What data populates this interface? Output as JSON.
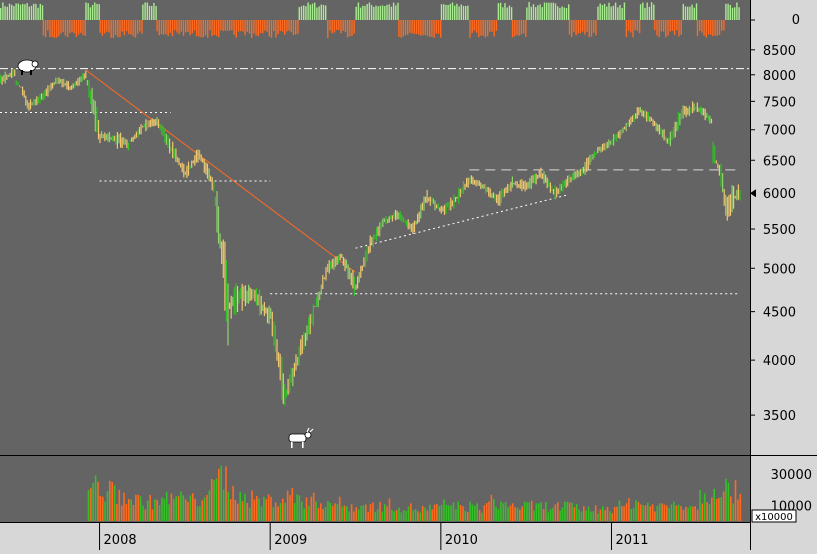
{
  "colors": {
    "background": "#646464",
    "axis_panel": "#d7d7d7",
    "up": "#8fd26a",
    "up_bright": "#34c026",
    "down": "#f0c870",
    "volume_down": "#ff6a20",
    "signal_up": "#a8ec90",
    "signal_down": "#ff6a20",
    "trendline": "#ff6a20",
    "guide": "#ffffff"
  },
  "icons": {
    "top_marker": "bear-icon",
    "bottom_marker": "bull-icon"
  },
  "chart_data": [
    {
      "type": "bar",
      "panel": "signal",
      "yticks": [
        "0"
      ],
      "series": [
        {
          "values_sign": "up",
          "periods": [
            [
              "2007-06",
              "2007-09"
            ],
            [
              "2007-12",
              "2008-01"
            ],
            [
              "2008-04",
              "2008-05"
            ],
            [
              "2009-03",
              "2009-05"
            ],
            [
              "2009-07",
              "2009-10"
            ],
            [
              "2010-01",
              "2010-03"
            ],
            [
              "2010-05",
              "2010-06"
            ],
            [
              "2010-07",
              "2010-10"
            ],
            [
              "2010-12",
              "2011-02"
            ],
            [
              "2011-03",
              "2011-04"
            ],
            [
              "2011-06",
              "2011-07"
            ],
            [
              "2011-09",
              "2011-10"
            ]
          ]
        },
        {
          "values_sign": "down",
          "periods": [
            [
              "2007-09",
              "2007-12"
            ],
            [
              "2008-01",
              "2008-04"
            ],
            [
              "2008-05",
              "2009-03"
            ],
            [
              "2009-05",
              "2009-07"
            ],
            [
              "2009-10",
              "2010-01"
            ],
            [
              "2010-03",
              "2010-05"
            ],
            [
              "2010-06",
              "2010-07"
            ],
            [
              "2010-10",
              "2010-12"
            ],
            [
              "2011-02",
              "2011-03"
            ],
            [
              "2011-04",
              "2011-06"
            ],
            [
              "2011-07",
              "2011-09"
            ]
          ]
        }
      ]
    },
    {
      "type": "line",
      "panel": "price",
      "scale": "log",
      "ylim": [
        3200,
        8600
      ],
      "yticks": [
        3500,
        4000,
        4500,
        5000,
        5500,
        6000,
        6500,
        7000,
        7500,
        8000,
        8500
      ],
      "xticks": [
        "2008",
        "2009",
        "2010",
        "2011"
      ],
      "x": [
        "2007-06",
        "2007-07",
        "2007-08",
        "2007-09",
        "2007-10",
        "2007-11",
        "2007-12",
        "2008-01",
        "2008-02",
        "2008-03",
        "2008-04",
        "2008-05",
        "2008-06",
        "2008-07",
        "2008-08",
        "2008-09",
        "2008-10",
        "2008-11",
        "2008-12",
        "2009-01",
        "2009-02",
        "2009-03",
        "2009-04",
        "2009-05",
        "2009-06",
        "2009-07",
        "2009-08",
        "2009-09",
        "2009-10",
        "2009-11",
        "2009-12",
        "2010-01",
        "2010-02",
        "2010-03",
        "2010-04",
        "2010-05",
        "2010-06",
        "2010-07",
        "2010-08",
        "2010-09",
        "2010-10",
        "2010-11",
        "2010-12",
        "2011-01",
        "2011-02",
        "2011-03",
        "2011-04",
        "2011-05",
        "2011-06",
        "2011-07",
        "2011-08",
        "2011-09",
        "2011-10"
      ],
      "close": [
        7900,
        8050,
        7400,
        7600,
        7900,
        7750,
        8000,
        6900,
        6850,
        6750,
        7050,
        7150,
        6700,
        6300,
        6600,
        6100,
        4550,
        4700,
        4650,
        4450,
        3650,
        4050,
        4450,
        5000,
        5150,
        4750,
        5300,
        5600,
        5700,
        5500,
        5950,
        5750,
        5900,
        6200,
        6100,
        5900,
        6150,
        6100,
        6300,
        6000,
        6200,
        6350,
        6650,
        6800,
        7050,
        7350,
        7100,
        6800,
        7300,
        7400,
        7150,
        5800,
        6000
      ],
      "high": [
        8100,
        8150,
        7800,
        7800,
        8050,
        8000,
        8100,
        7900,
        7100,
        7100,
        7250,
        7300,
        7200,
        6800,
        6800,
        6600,
        6300,
        5150,
        5100,
        4950,
        4700,
        4400,
        4700,
        5100,
        5250,
        5350,
        5450,
        5700,
        5900,
        5800,
        6050,
        6150,
        6050,
        6250,
        6300,
        6200,
        6250,
        6250,
        6400,
        6400,
        6350,
        6500,
        6750,
        6900,
        7150,
        7400,
        7500,
        7300,
        7450,
        7500,
        7500,
        6450,
        6300
      ],
      "low": [
        7550,
        7600,
        7200,
        7300,
        7500,
        7450,
        7650,
        6400,
        6600,
        6450,
        6800,
        6800,
        6500,
        6150,
        6200,
        5950,
        4100,
        4150,
        4400,
        4250,
        3580,
        3650,
        4000,
        4550,
        4850,
        4600,
        4700,
        5200,
        5450,
        5400,
        5450,
        5650,
        5550,
        5700,
        5900,
        5700,
        5700,
        5800,
        5900,
        5850,
        5850,
        6100,
        6200,
        6500,
        6700,
        6850,
        6900,
        6700,
        6650,
        6900,
        6950,
        5150,
        5050
      ],
      "lines": [
        {
          "kind": "horizontal-dashdot",
          "value": 8120
        },
        {
          "kind": "horizontal-dotted",
          "value": 7300,
          "from": "2007-06",
          "to": "2008-06"
        },
        {
          "kind": "horizontal-dotted",
          "value": 6180,
          "from": "2008-01",
          "to": "2009-01"
        },
        {
          "kind": "horizontal-dotted",
          "value": 4700,
          "from": "2009-01",
          "to": "2011-10"
        },
        {
          "kind": "horizontal-dashed",
          "value": 6350,
          "from": "2010-03",
          "to": "2011-10"
        },
        {
          "kind": "trendline",
          "from": [
            "2007-12",
            8100
          ],
          "to": [
            "2009-07",
            4950
          ]
        },
        {
          "kind": "trendline-dotted",
          "from": [
            "2009-07",
            5250
          ],
          "to": [
            "2010-10",
            5980
          ]
        }
      ],
      "last_value": 6000
    },
    {
      "type": "bar",
      "panel": "volume",
      "yticks": [
        10000,
        30000
      ],
      "unit_label": "x10000",
      "ylim": [
        0,
        40000
      ],
      "x": [
        "2007-06",
        "2007-07",
        "2007-08",
        "2007-09",
        "2007-10",
        "2007-11",
        "2007-12",
        "2008-01",
        "2008-02",
        "2008-03",
        "2008-04",
        "2008-05",
        "2008-06",
        "2008-07",
        "2008-08",
        "2008-09",
        "2008-10",
        "2008-11",
        "2008-12",
        "2009-01",
        "2009-02",
        "2009-03",
        "2009-04",
        "2009-05",
        "2009-06",
        "2009-07",
        "2009-08",
        "2009-09",
        "2009-10",
        "2009-11",
        "2009-12",
        "2010-01",
        "2010-02",
        "2010-03",
        "2010-04",
        "2010-05",
        "2010-06",
        "2010-07",
        "2010-08",
        "2010-09",
        "2010-10",
        "2010-11",
        "2010-12",
        "2011-01",
        "2011-02",
        "2011-03",
        "2011-04",
        "2011-05",
        "2011-06",
        "2011-07",
        "2011-08",
        "2011-09",
        "2011-10"
      ],
      "values": [
        0,
        0,
        0,
        0,
        0,
        0,
        0,
        24000,
        20000,
        17000,
        14000,
        13000,
        15000,
        16000,
        14000,
        21000,
        30000,
        19000,
        15000,
        14000,
        15000,
        17000,
        14000,
        13000,
        12000,
        10000,
        10000,
        10000,
        11000,
        9000,
        8000,
        9000,
        11000,
        10000,
        9000,
        13000,
        11000,
        10000,
        10000,
        10000,
        10000,
        9000,
        8000,
        9000,
        10000,
        13000,
        11000,
        10000,
        12000,
        11000,
        18000,
        24000,
        20000
      ]
    }
  ]
}
